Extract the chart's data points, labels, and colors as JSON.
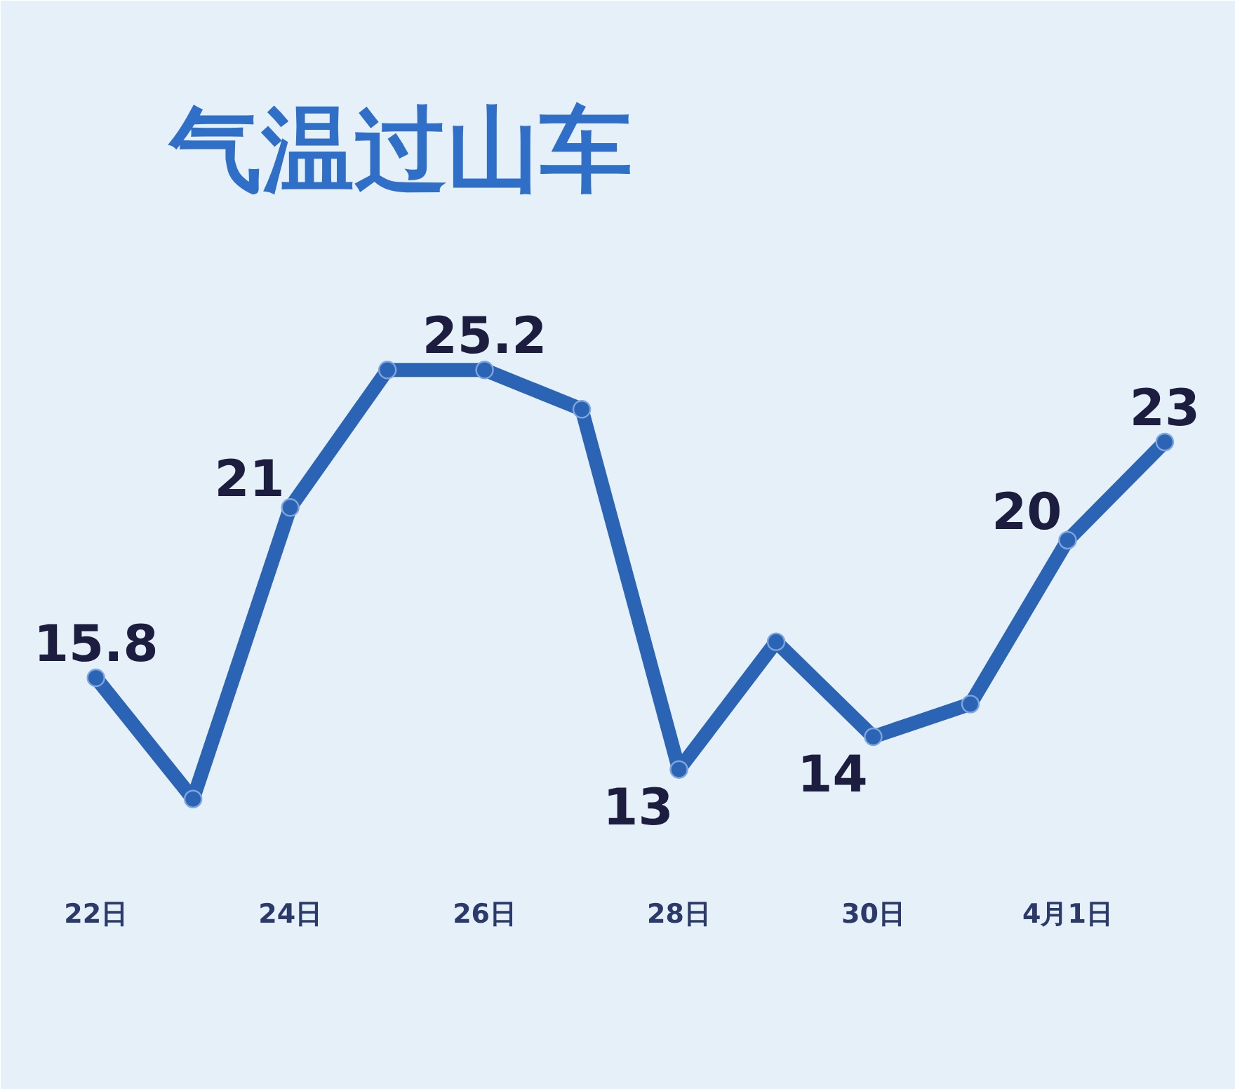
{
  "chart_data": {
    "type": "line",
    "title": "气温过山车",
    "categories": [
      "22日",
      null,
      "24日",
      null,
      "26日",
      null,
      "28日",
      null,
      "30日",
      null,
      "4月1日",
      null
    ],
    "series": [
      {
        "color": "#2b64b5",
        "values": [
          15.8,
          12.1,
          21,
          25.2,
          25.2,
          24,
          13,
          16.9,
          14,
          15,
          20,
          23
        ],
        "value_labels": [
          "15.8",
          null,
          "21",
          null,
          "25.2",
          null,
          "13",
          null,
          "14",
          null,
          "20",
          "23"
        ]
      }
    ],
    "marker": "circle",
    "line_style": "solid",
    "grid": false,
    "tick_labels": "x"
  }
}
